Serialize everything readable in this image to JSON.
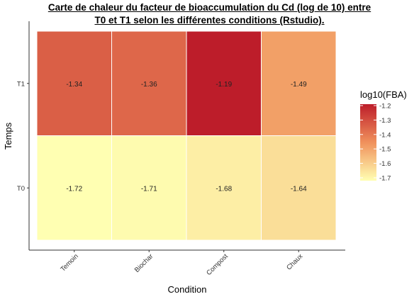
{
  "chart_data": {
    "type": "heatmap",
    "title_lines": [
      "Carte de chaleur du facteur de bioaccumulation du Cd (log de 10) entre",
      "T0 et T1 selon les différentes conditions (Rstudio)."
    ],
    "xlabel": "Condition",
    "ylabel": "Temps",
    "x_categories": [
      "Temoin",
      "Biochar",
      "Compost",
      "Chaux"
    ],
    "y_categories": [
      "T1",
      "T0"
    ],
    "values": [
      [
        -1.34,
        -1.36,
        -1.19,
        -1.49
      ],
      [
        -1.72,
        -1.71,
        -1.68,
        -1.64
      ]
    ],
    "value_labels": [
      [
        "-1.34",
        "-1.36",
        "-1.19",
        "-1.49"
      ],
      [
        "-1.72",
        "-1.71",
        "-1.68",
        "-1.64"
      ]
    ],
    "legend": {
      "title": "log10(FBA)",
      "position": "right",
      "range": [
        -1.72,
        -1.19
      ],
      "ticks": [
        -1.2,
        -1.3,
        -1.4,
        -1.5,
        -1.6,
        -1.7
      ],
      "tick_labels": [
        "-1.2",
        "-1.3",
        "-1.4",
        "-1.5",
        "-1.6",
        "-1.7"
      ],
      "color_low": "#FFFFB2",
      "color_mid": "#F0915C",
      "color_high": "#BD1D2A"
    },
    "grid": false
  }
}
